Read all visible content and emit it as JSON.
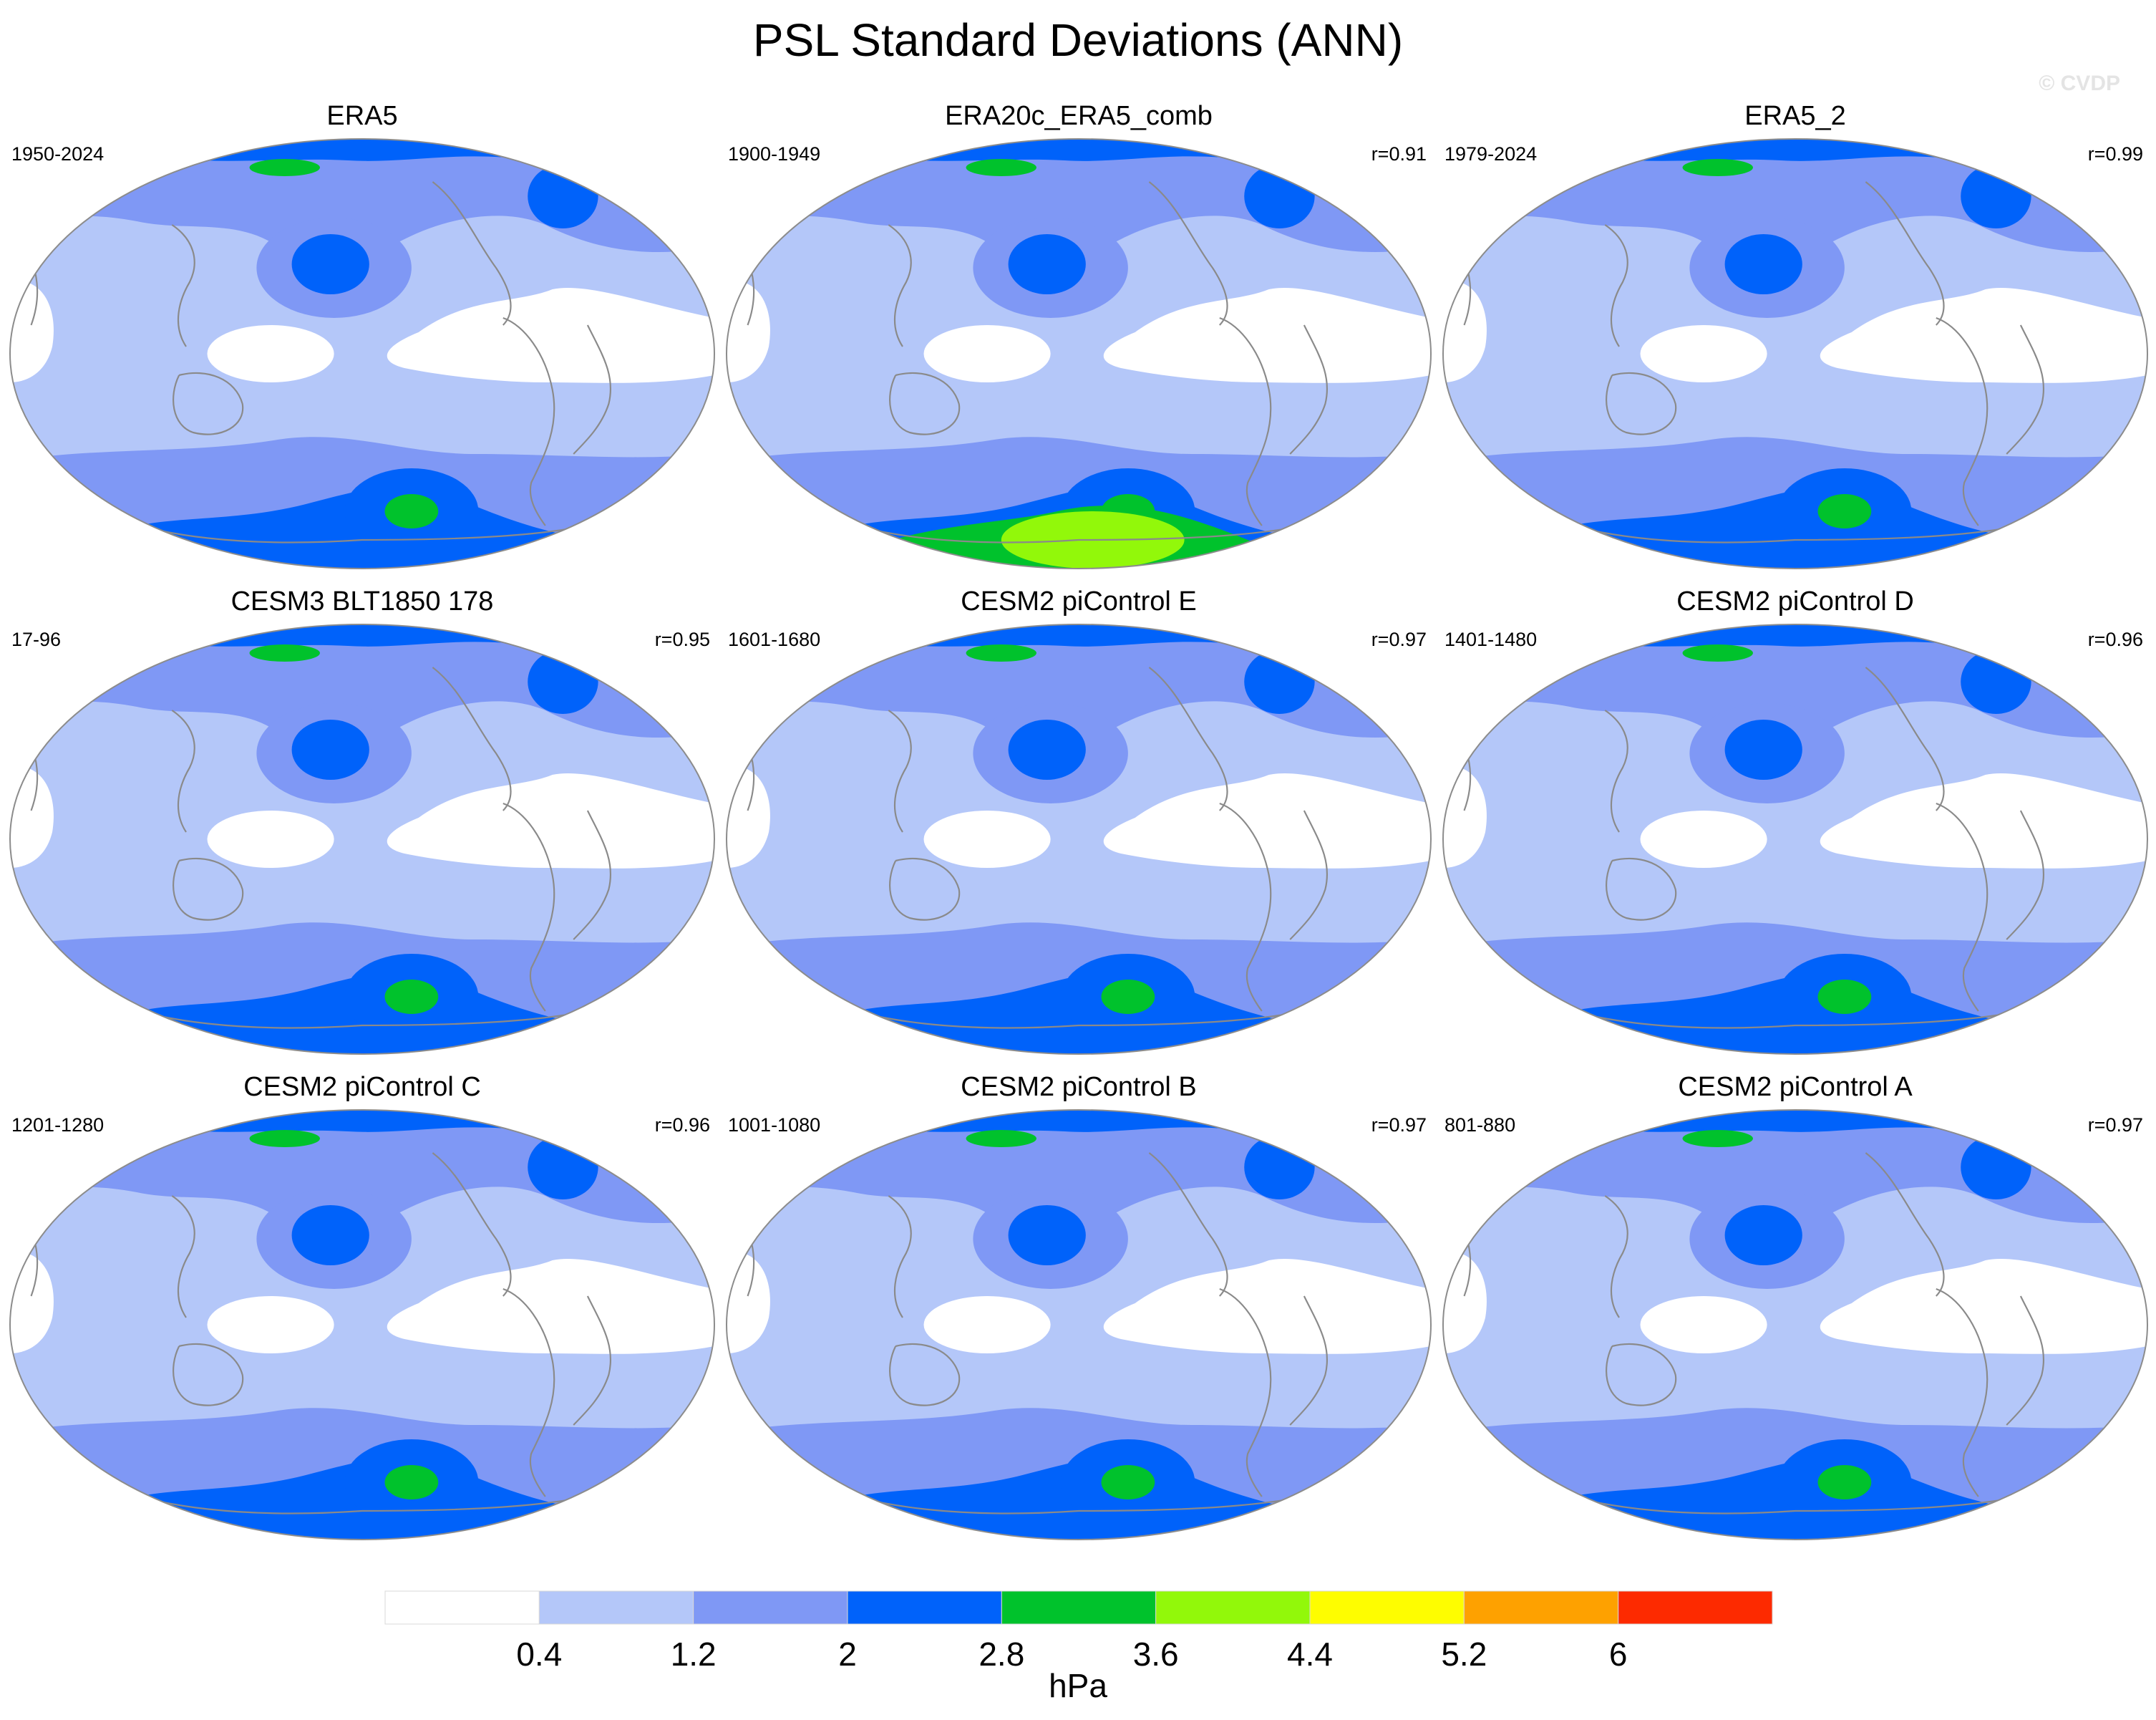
{
  "title": "PSL Standard Deviations (ANN)",
  "watermark": "© CVDP",
  "chart_data": {
    "type": "heatmap",
    "variable": "PSL",
    "season": "ANN",
    "projection": "Robinson (Pacific-centered)",
    "units": "hPa",
    "colorbar": {
      "levels": [
        "0.4",
        "1.2",
        "2",
        "2.8",
        "3.6",
        "4.4",
        "5.2",
        "6"
      ],
      "colors": [
        "#ffffff",
        "#b4c7f9",
        "#7f98f5",
        "#0062fa",
        "#00c22c",
        "#92f80a",
        "#fefd00",
        "#fea100",
        "#fd2a00"
      ],
      "label": "hPa"
    },
    "panels": [
      {
        "name": "ERA5",
        "years": "1950-2024",
        "r": "",
        "max_class": 4
      },
      {
        "name": "ERA20c_ERA5_comb",
        "years": "1900-1949",
        "r": "r=0.91",
        "max_class": 5
      },
      {
        "name": "ERA5_2",
        "years": "1979-2024",
        "r": "r=0.99",
        "max_class": 4
      },
      {
        "name": "CESM3 BLT1850 178",
        "years": "17-96",
        "r": "r=0.95",
        "max_class": 4
      },
      {
        "name": "CESM2 piControl E",
        "years": "1601-1680",
        "r": "r=0.97",
        "max_class": 4
      },
      {
        "name": "CESM2 piControl D",
        "years": "1401-1480",
        "r": "r=0.96",
        "max_class": 4
      },
      {
        "name": "CESM2 piControl C",
        "years": "1201-1280",
        "r": "r=0.96",
        "max_class": 4
      },
      {
        "name": "CESM2 piControl B",
        "years": "1001-1080",
        "r": "r=0.97",
        "max_class": 4
      },
      {
        "name": "CESM2 piControl A",
        "years": "801-880",
        "r": "r=0.97",
        "max_class": 4
      }
    ]
  }
}
